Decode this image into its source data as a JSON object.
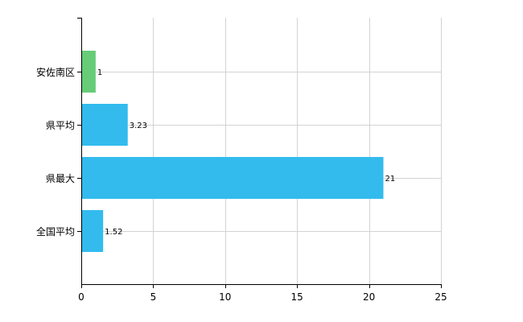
{
  "chart_data": {
    "type": "bar",
    "orientation": "horizontal",
    "categories": [
      "安佐南区",
      "県平均",
      "県最大",
      "全国平均"
    ],
    "values": [
      1,
      3.23,
      21,
      1.52
    ],
    "data_labels": [
      "1",
      "3.23",
      "21",
      "1.52"
    ],
    "bar_colors": [
      "#66cc77",
      "#33bbee",
      "#33bbee",
      "#33bbee"
    ],
    "xlim": [
      0,
      25
    ],
    "x_ticks": [
      0,
      5,
      10,
      15,
      20,
      25
    ],
    "grid": true,
    "title": "",
    "xlabel": "",
    "ylabel": ""
  }
}
